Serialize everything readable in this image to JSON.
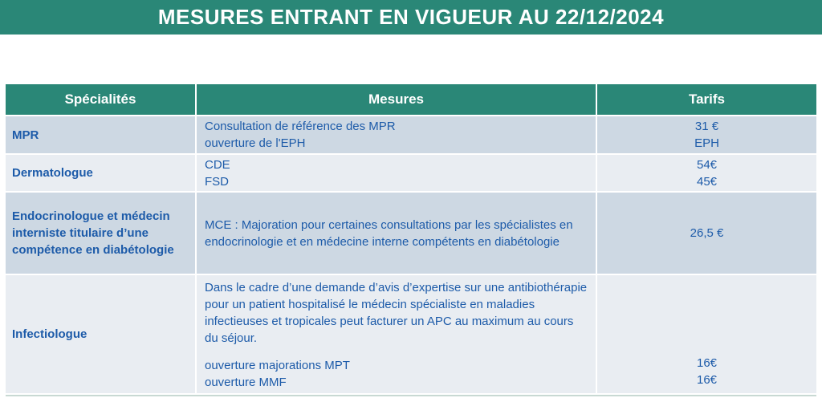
{
  "banner": {
    "title": "MESURES ENTRANT EN VIGUEUR AU 22/12/2024"
  },
  "colors": {
    "teal_accent": "#2A8777",
    "row_shade_dark": "#CDD8E3",
    "row_shade_light": "#E9EDF2",
    "text_blue": "#1D5BA9",
    "header_text": "#FFFFFF"
  },
  "table": {
    "headers": {
      "specialties": "Spécialités",
      "measures": "Mesures",
      "tariffs": "Tarifs"
    },
    "rows": [
      {
        "specialty": "MPR",
        "measures": [
          "Consultation de référence des MPR",
          "ouverture de l'EPH"
        ],
        "tariffs": [
          "31 €",
          "EPH"
        ]
      },
      {
        "specialty": "Dermatologue",
        "measures": [
          "CDE",
          "FSD"
        ],
        "tariffs": [
          "54€",
          "45€"
        ]
      },
      {
        "specialty": "Endocrinologue et médecin interniste titulaire d’une compétence en diabétologie",
        "measures": [
          "MCE : Majoration pour certaines consultations par les spécialistes en endocrinologie et en médecine interne compétents en diabétologie"
        ],
        "tariffs": [
          "26,5 €"
        ]
      },
      {
        "specialty": "Infectiologue",
        "measures": [
          "Dans le cadre d’une demande d’avis d’expertise sur une antibiothérapie pour un patient hospitalisé le médecin spécialiste en maladies infectieuses et tropicales peut facturer un APC au maximum au cours du séjour.",
          "ouverture majorations MPT",
          "ouverture MMF"
        ],
        "tariffs": [
          "16€",
          "16€"
        ]
      }
    ]
  }
}
